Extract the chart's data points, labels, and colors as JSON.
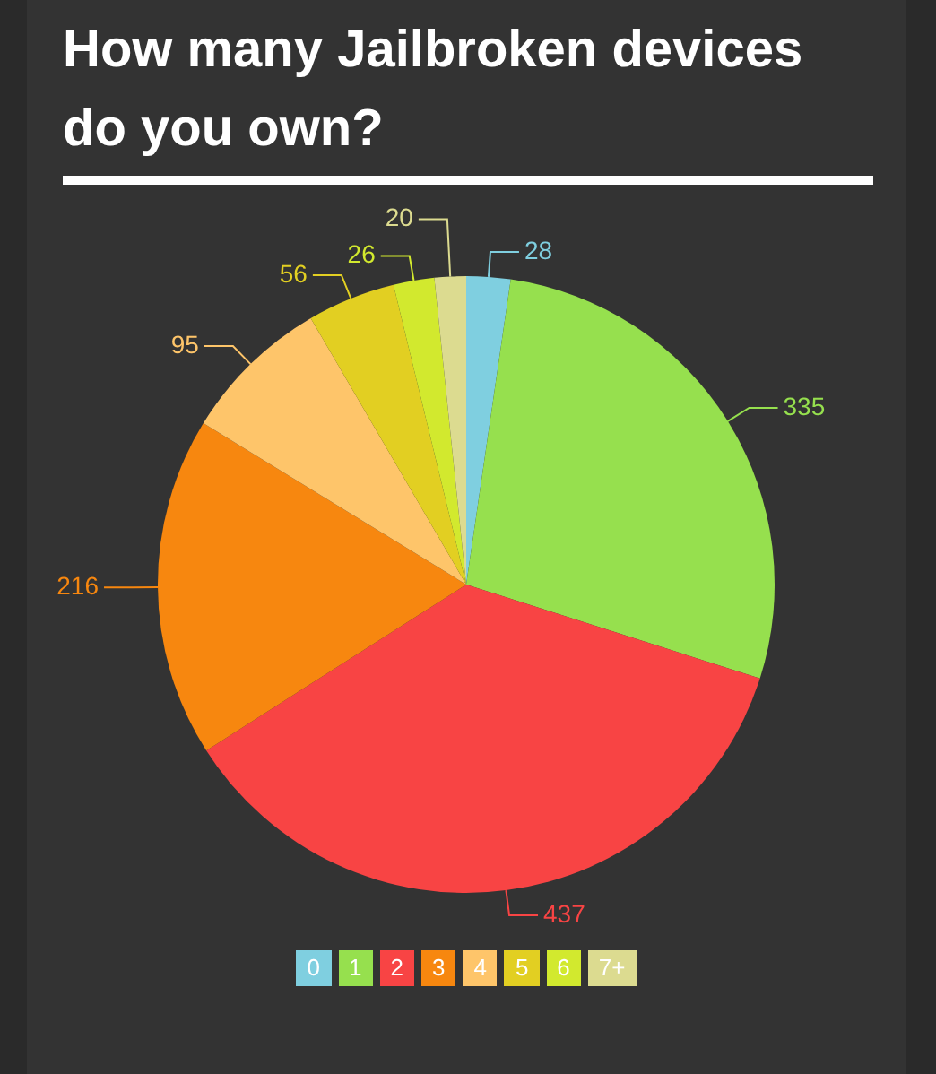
{
  "chart_data": {
    "type": "pie",
    "title": "How many Jailbroken devices do you own?",
    "categories": [
      "0",
      "1",
      "2",
      "3",
      "4",
      "5",
      "6",
      "7+"
    ],
    "values": [
      28,
      335,
      437,
      216,
      95,
      56,
      26,
      20
    ],
    "colors": [
      "#7fcfe0",
      "#96e04e",
      "#f84444",
      "#f7870f",
      "#fec56a",
      "#e2cf22",
      "#d2e92e",
      "#dcdb90"
    ],
    "data_labels": true,
    "legend": "bottom"
  }
}
